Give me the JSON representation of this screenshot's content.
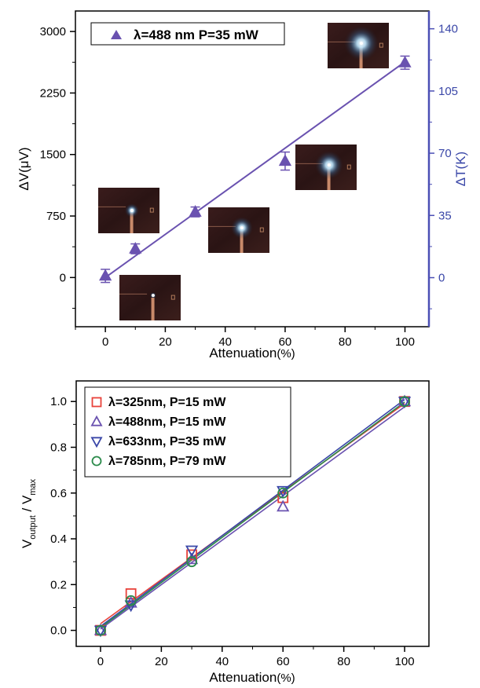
{
  "chart_data": [
    {
      "type": "scatter",
      "xlabel": "Attenuation",
      "xunit": "(%)",
      "ylabel": "ΔV(μV)",
      "y2label": "ΔT(K)",
      "xlim": [
        -10,
        108
      ],
      "ylim": [
        -600,
        3250
      ],
      "y2lim": [
        -27.6,
        150
      ],
      "xticks": [
        0,
        20,
        40,
        60,
        80,
        100
      ],
      "yticks": [
        0,
        750,
        1500,
        2250,
        3000
      ],
      "y2ticks": [
        0,
        35,
        70,
        105,
        140
      ],
      "legend_position": "top-left",
      "series": [
        {
          "name": "λ=488 nm P=35 mW",
          "marker": "triangle-up-filled",
          "color": "#6a52b0",
          "x": [
            0,
            10,
            30,
            60,
            100
          ],
          "y": [
            20,
            350,
            800,
            1420,
            2620
          ],
          "yerr": [
            80,
            60,
            60,
            110,
            80
          ]
        }
      ],
      "fit": {
        "x": [
          0,
          100
        ],
        "y": [
          0,
          2630
        ]
      },
      "insets": [
        "beam-spot-photo-0",
        "beam-spot-photo-10",
        "beam-spot-photo-30",
        "beam-spot-photo-60",
        "beam-spot-photo-100"
      ]
    },
    {
      "type": "line",
      "xlabel": "Attenuation",
      "xunit": "(%)",
      "ylabel_main": "V",
      "ylabel_sub1": "output",
      "ylabel_mid": " / V",
      "ylabel_sub2": "max",
      "xlim": [
        -8,
        108
      ],
      "ylim": [
        -0.07,
        1.09
      ],
      "xticks": [
        0,
        20,
        40,
        60,
        80,
        100
      ],
      "yticks": [
        "0.0",
        "0.2",
        "0.4",
        "0.6",
        "0.8",
        "1.0"
      ],
      "legend_position": "top-left",
      "series": [
        {
          "name": "λ=325nm, P=15 mW",
          "marker": "square",
          "color": "#e8423b",
          "x": [
            0,
            10,
            30,
            60,
            100
          ],
          "y": [
            0.0,
            0.16,
            0.33,
            0.58,
            1.0
          ]
        },
        {
          "name": "λ=488nm, P=15 mW",
          "marker": "triangle-up",
          "color": "#6a52b0",
          "x": [
            0,
            10,
            30,
            60,
            100
          ],
          "y": [
            0.0,
            0.12,
            0.31,
            0.54,
            1.0
          ]
        },
        {
          "name": "λ=633nm, P=35 mW",
          "marker": "triangle-down",
          "color": "#3a47a8",
          "x": [
            0,
            10,
            30,
            60,
            100
          ],
          "y": [
            0.0,
            0.11,
            0.35,
            0.61,
            1.0
          ]
        },
        {
          "name": "λ=785nm, P=79 mW",
          "marker": "circle",
          "color": "#2a8a4a",
          "x": [
            0,
            10,
            30,
            60,
            100
          ],
          "y": [
            0.0,
            0.13,
            0.3,
            0.6,
            1.0
          ]
        }
      ]
    }
  ]
}
